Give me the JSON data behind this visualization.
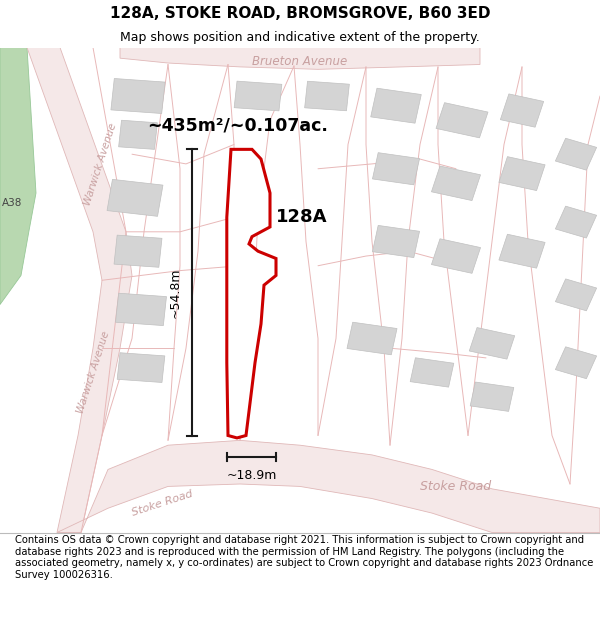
{
  "title": "128A, STOKE ROAD, BROMSGROVE, B60 3ED",
  "subtitle": "Map shows position and indicative extent of the property.",
  "footer": "Contains OS data © Crown copyright and database right 2021. This information is subject to Crown copyright and database rights 2023 and is reproduced with the permission of HM Land Registry. The polygons (including the associated geometry, namely x, y co-ordinates) are subject to Crown copyright and database rights 2023 Ordnance Survey 100026316.",
  "area_label": "~435m²/~0.107ac.",
  "property_label": "128A",
  "dim_height": "~54.8m",
  "dim_width": "~18.9m",
  "road_label_stoke1": "Stoke Road",
  "road_label_stoke2": "Stoke Road",
  "road_label_brueton": "Brueton Avenue",
  "road_label_warwick1": "Warwick Avenue",
  "road_label_warwick2": "Warwick Avenue",
  "a38_label": "A38",
  "map_bg": "#faf8f8",
  "plot_fill": "#ffffff",
  "plot_edge": "#cc0000",
  "road_fill": "#f5e8e8",
  "road_edge": "#e0b8b8",
  "road_line": "#e8b8b8",
  "building_fill": "#d4d4d4",
  "building_edge": "#c0c0c0",
  "green_fill": "#c8e0c0",
  "green_edge": "#98c898",
  "a38_fill": "#b8d8b0",
  "dim_color": "#1a1a1a",
  "label_color": "#c8a0a0",
  "title_fontsize": 11,
  "subtitle_fontsize": 9,
  "footer_fontsize": 7.2
}
